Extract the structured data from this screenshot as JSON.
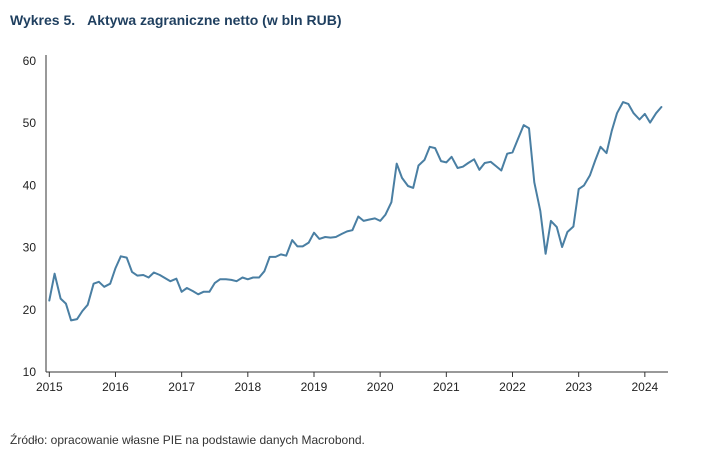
{
  "header": {
    "figure_number": "Wykres 5.",
    "title": "Aktywa zagraniczne netto (w bln RUB)"
  },
  "footer": {
    "source": "Źródło: opracowanie własne PIE na podstawie danych Macrobond."
  },
  "colors": {
    "line": "#4a7fa3",
    "axis": "#333333",
    "title": "#1f3f5f"
  },
  "chart_data": {
    "type": "line",
    "title": "Aktywa zagraniczne netto (w bln RUB)",
    "xlabel": "",
    "ylabel": "",
    "ylim": [
      10,
      60
    ],
    "yticks": [
      10,
      20,
      30,
      40,
      50,
      60
    ],
    "xticks": [
      "2015",
      "2016",
      "2017",
      "2018",
      "2019",
      "2020",
      "2021",
      "2022",
      "2023",
      "2024"
    ],
    "xlim": [
      2014.95,
      2024.35
    ],
    "grid": false,
    "series": [
      {
        "x": [
          2015.0,
          2015.08,
          2015.17,
          2015.25,
          2015.33,
          2015.42,
          2015.5,
          2015.58,
          2015.67,
          2015.75,
          2015.83,
          2015.92,
          2016.0,
          2016.08,
          2016.17,
          2016.25,
          2016.33,
          2016.42,
          2016.5,
          2016.58,
          2016.67,
          2016.75,
          2016.83,
          2016.92,
          2017.0,
          2017.08,
          2017.17,
          2017.25,
          2017.33,
          2017.42,
          2017.5,
          2017.58,
          2017.67,
          2017.75,
          2017.83,
          2017.92,
          2018.0,
          2018.08,
          2018.17,
          2018.25,
          2018.33,
          2018.42,
          2018.5,
          2018.58,
          2018.67,
          2018.75,
          2018.83,
          2018.92,
          2019.0,
          2019.08,
          2019.17,
          2019.25,
          2019.33,
          2019.42,
          2019.5,
          2019.58,
          2019.67,
          2019.75,
          2019.83,
          2019.92,
          2020.0,
          2020.08,
          2020.17,
          2020.25,
          2020.33,
          2020.42,
          2020.5,
          2020.58,
          2020.67,
          2020.75,
          2020.83,
          2020.92,
          2021.0,
          2021.08,
          2021.17,
          2021.25,
          2021.33,
          2021.42,
          2021.5,
          2021.58,
          2021.67,
          2021.75,
          2021.83,
          2021.92,
          2022.0,
          2022.08,
          2022.17,
          2022.25,
          2022.33,
          2022.42,
          2022.5,
          2022.58,
          2022.67,
          2022.75,
          2022.83,
          2022.92,
          2023.0,
          2023.08,
          2023.17,
          2023.25,
          2023.33,
          2023.42,
          2023.5,
          2023.58,
          2023.67,
          2023.75,
          2023.83,
          2023.92,
          2024.0,
          2024.08,
          2024.17,
          2024.25
        ],
        "values": [
          21.5,
          25.8,
          21.8,
          21.0,
          18.3,
          18.5,
          19.8,
          20.8,
          24.2,
          24.5,
          23.7,
          24.2,
          26.7,
          28.6,
          28.4,
          26.1,
          25.5,
          25.6,
          25.2,
          26.0,
          25.6,
          25.1,
          24.6,
          25.0,
          22.9,
          23.5,
          23.0,
          22.5,
          22.9,
          22.9,
          24.3,
          24.9,
          24.9,
          24.8,
          24.6,
          25.2,
          24.9,
          25.2,
          25.2,
          26.2,
          28.5,
          28.5,
          28.9,
          28.7,
          31.2,
          30.2,
          30.2,
          30.8,
          32.4,
          31.4,
          31.7,
          31.6,
          31.7,
          32.2,
          32.6,
          32.8,
          35.0,
          34.3,
          34.5,
          34.7,
          34.3,
          35.3,
          37.3,
          43.5,
          41.2,
          39.9,
          39.6,
          43.2,
          44.1,
          46.2,
          46.0,
          43.9,
          43.7,
          44.6,
          42.8,
          43.0,
          43.6,
          44.2,
          42.5,
          43.6,
          43.8,
          43.1,
          42.4,
          45.1,
          45.3,
          47.4,
          49.7,
          49.2,
          40.5,
          35.9,
          29.0,
          34.3,
          33.3,
          30.1,
          32.5,
          33.4,
          39.4,
          40.0,
          41.6,
          44.0,
          46.2,
          45.2,
          48.8,
          51.6,
          53.4,
          53.1,
          51.6,
          50.6,
          51.5,
          50.1,
          51.6,
          52.6
        ]
      }
    ]
  }
}
